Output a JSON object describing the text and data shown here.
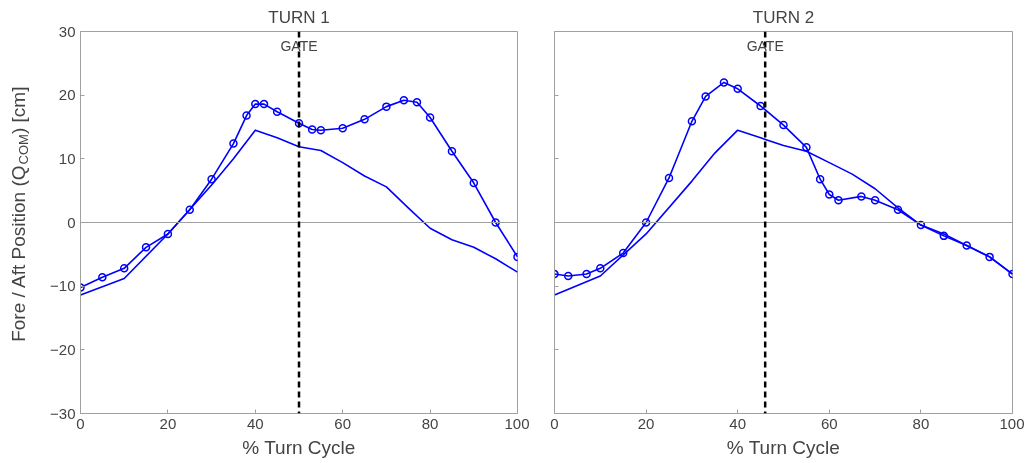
{
  "chart_data": [
    {
      "type": "line",
      "title": "TURN 1",
      "xlabel": "% Turn Cycle",
      "ylabel": "Fore / Aft Position (Q$_{COM}$) [cm]",
      "xlim": [
        0,
        100
      ],
      "ylim": [
        -30,
        30
      ],
      "xticks": [
        0,
        20,
        40,
        60,
        80,
        100
      ],
      "yticks": [
        -30,
        -20,
        -10,
        0,
        10,
        20,
        30
      ],
      "grid": false,
      "series": [
        {
          "color": "#0000ff",
          "marker": "circle",
          "x": [
            0,
            5,
            10,
            15,
            20,
            25,
            30,
            35,
            38,
            40,
            42,
            45,
            50,
            53,
            55,
            60,
            65,
            70,
            74,
            77,
            80,
            85,
            90,
            95,
            100
          ],
          "values": [
            -10.2,
            -8.6,
            -7.2,
            -3.9,
            -1.8,
            2.0,
            6.8,
            12.4,
            16.8,
            18.6,
            18.6,
            17.4,
            15.6,
            14.6,
            14.5,
            14.8,
            16.2,
            18.2,
            19.2,
            18.9,
            16.5,
            11.2,
            6.2,
            0,
            -5.4
          ]
        },
        {
          "color": "#0000ff",
          "marker": "none",
          "x": [
            0,
            10,
            20,
            30,
            35,
            40,
            45,
            50,
            55,
            60,
            65,
            70,
            75,
            80,
            85,
            90,
            95,
            100
          ],
          "values": [
            -11.4,
            -8.8,
            -1.8,
            5.9,
            10.0,
            14.5,
            13.3,
            11.9,
            11.3,
            9.4,
            7.3,
            5.6,
            2.3,
            -0.9,
            -2.7,
            -3.9,
            -5.7,
            -7.8
          ]
        }
      ],
      "ref_lines": [
        {
          "axis": "y",
          "value": 0,
          "label": null,
          "color": "#a0a0a0",
          "line_style": "solid"
        },
        {
          "axis": "x",
          "value": 50,
          "label": "GATE",
          "color": "#000000",
          "line_style": "dashed"
        }
      ]
    },
    {
      "type": "line",
      "title": "TURN 2",
      "xlabel": "% Turn Cycle",
      "xlim": [
        0,
        100
      ],
      "ylim": [
        -30,
        30
      ],
      "xticks": [
        0,
        20,
        40,
        60,
        80,
        100
      ],
      "yticks": [
        -30,
        -20,
        -10,
        0,
        10,
        20,
        30
      ],
      "grid": false,
      "tick_labels": "x",
      "series": [
        {
          "color": "#0000ff",
          "marker": "circle",
          "x": [
            0,
            3,
            7,
            10,
            15,
            20,
            25,
            30,
            33,
            37,
            40,
            45,
            50,
            55,
            58,
            60,
            62,
            67,
            70,
            75,
            80,
            85,
            90,
            95,
            100
          ],
          "values": [
            -8.1,
            -8.4,
            -8.1,
            -7.2,
            -4.8,
            0,
            7.0,
            15.9,
            19.8,
            22.0,
            21.0,
            18.3,
            15.3,
            11.8,
            6.8,
            4.4,
            3.5,
            4.1,
            3.5,
            2.0,
            -0.4,
            -2.1,
            -3.6,
            -5.4,
            -8.1
          ]
        },
        {
          "color": "#0000ff",
          "marker": "none",
          "x": [
            0,
            10,
            20,
            30,
            35,
            40,
            45,
            50,
            55,
            60,
            65,
            70,
            75,
            80,
            85,
            90,
            95,
            100
          ],
          "values": [
            -11.4,
            -8.4,
            -1.8,
            6.5,
            10.9,
            14.5,
            13.3,
            12.1,
            11.2,
            9.4,
            7.6,
            5.3,
            2.3,
            -0.4,
            -1.8,
            -3.6,
            -5.4,
            -8.1
          ]
        }
      ],
      "ref_lines": [
        {
          "axis": "y",
          "value": 0,
          "label": null,
          "color": "#a0a0a0",
          "line_style": "solid"
        },
        {
          "axis": "x",
          "value": 46,
          "label": "GATE",
          "color": "#000000",
          "line_style": "dashed"
        }
      ]
    }
  ]
}
